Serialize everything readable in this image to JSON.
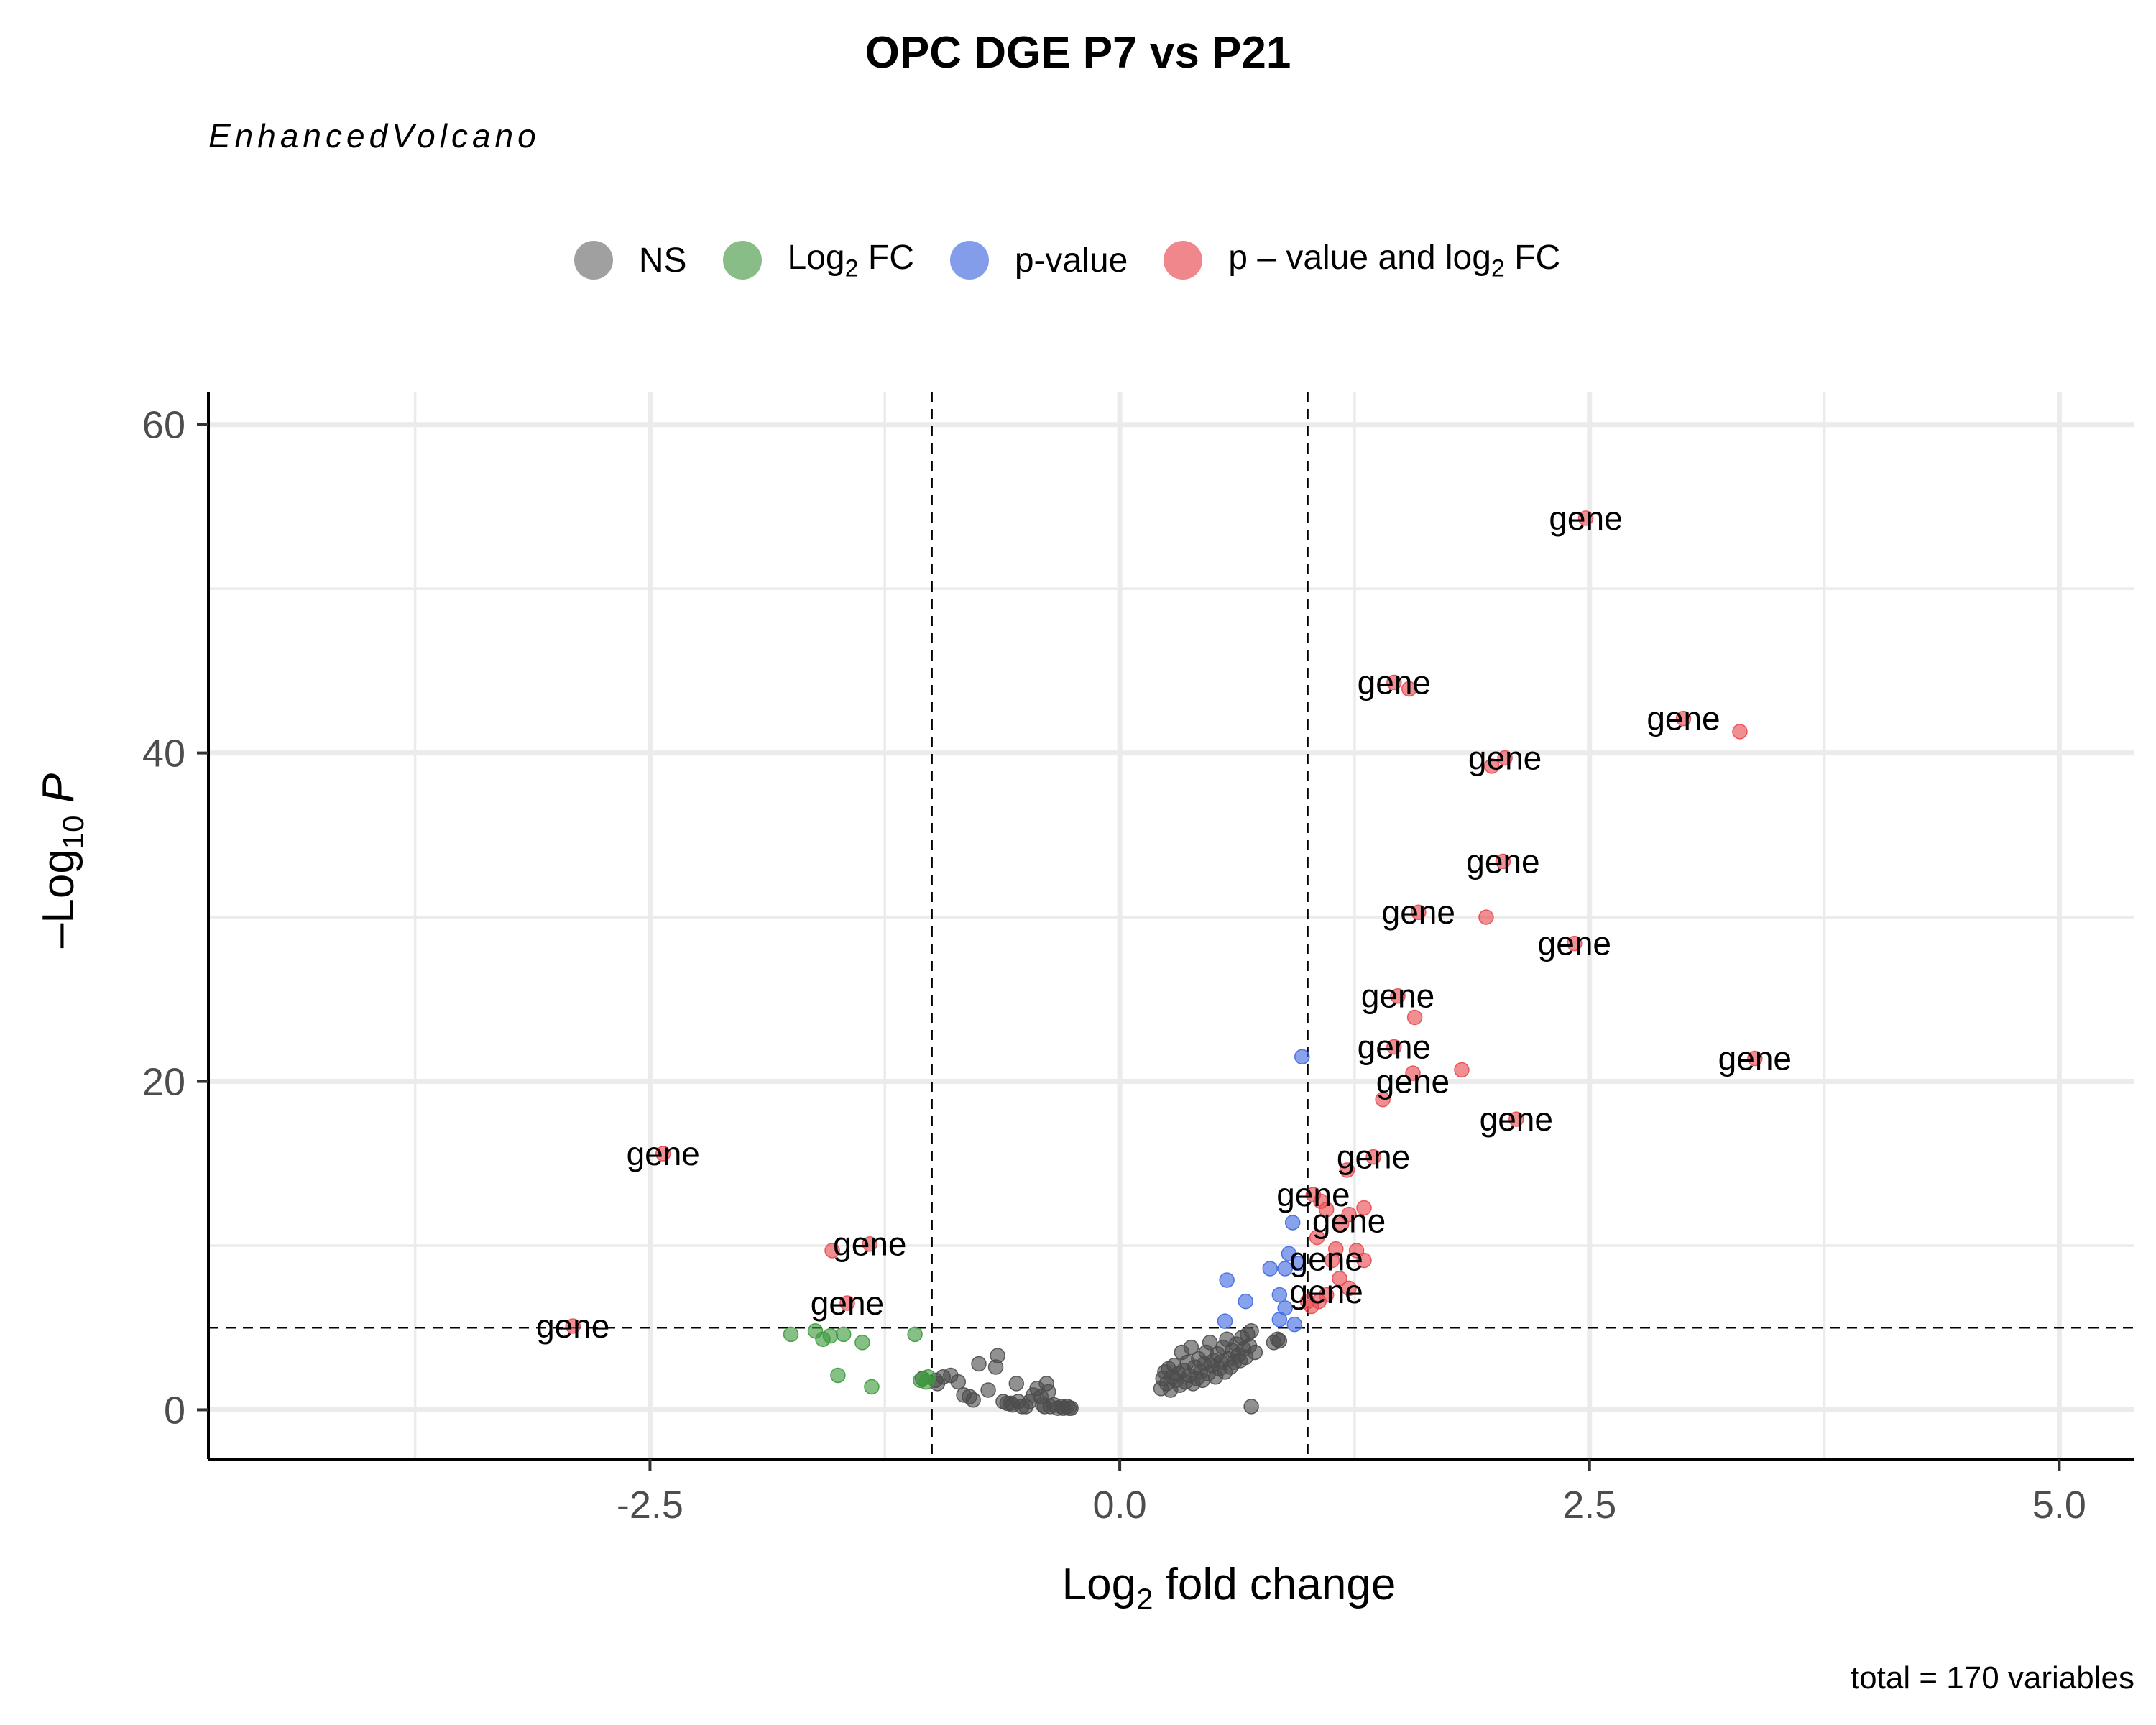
{
  "chart_data": {
    "type": "scatter",
    "title": "OPC DGE P7 vs P21",
    "subtitle": "EnhancedVolcano",
    "xlabel": "Log2 fold change",
    "xlabel_parts": {
      "pre": "Log",
      "sub": "2",
      "post": " fold change"
    },
    "ylabel_parts": {
      "pre": "–Log",
      "sub": "10",
      "post": " P"
    },
    "caption": "total = 170 variables",
    "xlim": [
      -4.85,
      5.4
    ],
    "ylim": [
      -3,
      62
    ],
    "x_ticks": [
      -2.5,
      0.0,
      2.5,
      5.0
    ],
    "x_tick_labels": [
      "-2.5",
      "0.0",
      "2.5",
      "5.0"
    ],
    "y_ticks": [
      0,
      20,
      40,
      60
    ],
    "y_tick_labels": [
      "0",
      "20",
      "40",
      "60"
    ],
    "grid": true,
    "legend_position": "top",
    "thresholds": {
      "fc_cutoffs": [
        -1,
        1
      ],
      "p_cutoff_neglog10": 5
    },
    "legend": [
      {
        "key": "NS",
        "text": "NS",
        "color": "#6e6e6e"
      },
      {
        "key": "FC",
        "text": "Log",
        "sub": "2",
        "post": " FC",
        "color": "#4a9a4a"
      },
      {
        "key": "P",
        "text": "p-value",
        "color": "#4169e1"
      },
      {
        "key": "FCP",
        "text": "p – value and log",
        "sub": "2",
        "post": " FC",
        "color": "#e8484f"
      }
    ],
    "series": [
      {
        "key": "NS",
        "color": "#4d4d4d",
        "points": [
          [
            -1.05,
            1.9
          ],
          [
            -0.98,
            1.8
          ],
          [
            -0.97,
            1.6
          ],
          [
            -0.94,
            2.0
          ],
          [
            -0.9,
            2.1
          ],
          [
            -0.86,
            1.7
          ],
          [
            -0.83,
            0.9
          ],
          [
            -0.8,
            0.8
          ],
          [
            -0.78,
            0.6
          ],
          [
            -0.75,
            2.8
          ],
          [
            -0.7,
            1.2
          ],
          [
            -0.66,
            2.6
          ],
          [
            -0.65,
            3.3
          ],
          [
            -0.62,
            0.5
          ],
          [
            -0.6,
            0.4
          ],
          [
            -0.58,
            0.4
          ],
          [
            -0.57,
            0.3
          ],
          [
            -0.55,
            1.6
          ],
          [
            -0.54,
            0.5
          ],
          [
            -0.52,
            0.2
          ],
          [
            -0.5,
            0.2
          ],
          [
            -0.48,
            0.5
          ],
          [
            -0.46,
            0.9
          ],
          [
            -0.44,
            1.3
          ],
          [
            -0.42,
            0.8
          ],
          [
            -0.41,
            0.3
          ],
          [
            -0.4,
            0.2
          ],
          [
            -0.39,
            1.6
          ],
          [
            -0.38,
            1.1
          ],
          [
            -0.37,
            0.2
          ],
          [
            -0.35,
            0.3
          ],
          [
            -0.33,
            0.1
          ],
          [
            -0.31,
            0.2
          ],
          [
            -0.3,
            0.1
          ],
          [
            -0.28,
            0.2
          ],
          [
            -0.27,
            0.1
          ],
          [
            -0.26,
            0.1
          ],
          [
            0.22,
            1.3
          ],
          [
            0.23,
            1.9
          ],
          [
            0.24,
            2.3
          ],
          [
            0.25,
            1.6
          ],
          [
            0.26,
            2.5
          ],
          [
            0.27,
            1.2
          ],
          [
            0.28,
            2.0
          ],
          [
            0.29,
            2.7
          ],
          [
            0.3,
            1.8
          ],
          [
            0.31,
            2.2
          ],
          [
            0.32,
            1.5
          ],
          [
            0.33,
            3.5
          ],
          [
            0.34,
            2.4
          ],
          [
            0.35,
            1.7
          ],
          [
            0.36,
            2.9
          ],
          [
            0.37,
            2.1
          ],
          [
            0.38,
            3.8
          ],
          [
            0.39,
            1.6
          ],
          [
            0.4,
            2.6
          ],
          [
            0.41,
            1.9
          ],
          [
            0.42,
            3.1
          ],
          [
            0.43,
            2.3
          ],
          [
            0.44,
            1.8
          ],
          [
            0.45,
            2.8
          ],
          [
            0.46,
            3.5
          ],
          [
            0.47,
            2.2
          ],
          [
            0.48,
            4.1
          ],
          [
            0.49,
            2.7
          ],
          [
            0.5,
            3.0
          ],
          [
            0.51,
            2.0
          ],
          [
            0.52,
            3.4
          ],
          [
            0.53,
            2.5
          ],
          [
            0.54,
            2.9
          ],
          [
            0.55,
            3.8
          ],
          [
            0.56,
            2.3
          ],
          [
            0.57,
            4.3
          ],
          [
            0.58,
            3.1
          ],
          [
            0.59,
            2.6
          ],
          [
            0.6,
            3.6
          ],
          [
            0.61,
            2.9
          ],
          [
            0.62,
            4.0
          ],
          [
            0.63,
            3.3
          ],
          [
            0.64,
            3.0
          ],
          [
            0.65,
            4.4
          ],
          [
            0.66,
            3.7
          ],
          [
            0.67,
            3.2
          ],
          [
            0.68,
            4.6
          ],
          [
            0.69,
            3.9
          ],
          [
            0.7,
            4.8
          ],
          [
            0.72,
            3.5
          ],
          [
            0.7,
            0.2
          ],
          [
            0.82,
            4.1
          ],
          [
            0.84,
            4.3
          ],
          [
            0.85,
            4.2
          ]
        ]
      },
      {
        "key": "FC",
        "color": "#3e9a3e",
        "points": [
          [
            -1.75,
            4.6
          ],
          [
            -1.62,
            4.8
          ],
          [
            -1.58,
            4.3
          ],
          [
            -1.54,
            4.5
          ],
          [
            -1.5,
            2.1
          ],
          [
            -1.47,
            4.6
          ],
          [
            -1.37,
            4.1
          ],
          [
            -1.32,
            1.4
          ],
          [
            -1.09,
            4.6
          ],
          [
            -1.06,
            1.8
          ],
          [
            -1.03,
            1.7
          ],
          [
            -1.02,
            2.0
          ]
        ]
      },
      {
        "key": "P",
        "color": "#4169e1",
        "points": [
          [
            0.97,
            21.5
          ],
          [
            0.92,
            11.4
          ],
          [
            0.88,
            8.6
          ],
          [
            0.8,
            8.6
          ],
          [
            0.85,
            7.0
          ],
          [
            0.57,
            7.9
          ],
          [
            0.67,
            6.6
          ],
          [
            0.56,
            5.4
          ],
          [
            0.85,
            5.5
          ],
          [
            0.88,
            6.2
          ],
          [
            0.93,
            5.2
          ],
          [
            0.9,
            9.5
          ],
          [
            0.95,
            8.9
          ]
        ]
      },
      {
        "key": "FCP",
        "color": "#e8484f",
        "points": [
          [
            2.48,
            54.3
          ],
          [
            1.46,
            44.3
          ],
          [
            1.54,
            43.9
          ],
          [
            3.0,
            42.1
          ],
          [
            3.3,
            41.3
          ],
          [
            2.05,
            39.7
          ],
          [
            1.98,
            39.2
          ],
          [
            2.04,
            33.4
          ],
          [
            1.59,
            30.3
          ],
          [
            1.95,
            30.0
          ],
          [
            2.42,
            28.4
          ],
          [
            1.48,
            25.2
          ],
          [
            1.57,
            23.9
          ],
          [
            1.46,
            22.1
          ],
          [
            1.56,
            20.5
          ],
          [
            1.82,
            20.7
          ],
          [
            1.4,
            18.9
          ],
          [
            2.11,
            17.7
          ],
          [
            3.38,
            21.4
          ],
          [
            -2.43,
            15.6
          ],
          [
            -1.33,
            10.1
          ],
          [
            -1.53,
            9.7
          ],
          [
            -1.45,
            6.5
          ],
          [
            -2.91,
            5.1
          ],
          [
            1.35,
            15.4
          ],
          [
            1.21,
            14.6
          ],
          [
            1.03,
            13.1
          ],
          [
            1.07,
            12.7
          ],
          [
            1.1,
            12.2
          ],
          [
            1.22,
            11.9
          ],
          [
            1.3,
            12.3
          ],
          [
            1.18,
            11.3
          ],
          [
            1.05,
            10.5
          ],
          [
            1.15,
            9.8
          ],
          [
            1.26,
            9.7
          ],
          [
            1.13,
            9.1
          ],
          [
            1.3,
            9.1
          ],
          [
            1.17,
            8.0
          ],
          [
            1.22,
            7.4
          ],
          [
            1.1,
            7.0
          ],
          [
            1.06,
            6.6
          ],
          [
            1.02,
            6.3
          ],
          [
            1.0,
            6.6
          ]
        ]
      }
    ],
    "labels": [
      {
        "x": 2.48,
        "y": 54.3,
        "text": "gene"
      },
      {
        "x": 1.46,
        "y": 44.3,
        "text": "gene"
      },
      {
        "x": 3.0,
        "y": 42.1,
        "text": "gene"
      },
      {
        "x": 2.05,
        "y": 39.7,
        "text": "gene"
      },
      {
        "x": 2.04,
        "y": 33.4,
        "text": "gene"
      },
      {
        "x": 1.59,
        "y": 30.3,
        "text": "gene"
      },
      {
        "x": 2.42,
        "y": 28.4,
        "text": "gene"
      },
      {
        "x": 1.48,
        "y": 25.2,
        "text": "gene"
      },
      {
        "x": 1.46,
        "y": 22.1,
        "text": "gene"
      },
      {
        "x": 3.38,
        "y": 21.4,
        "text": "gene"
      },
      {
        "x": 1.56,
        "y": 20.0,
        "text": "gene"
      },
      {
        "x": 2.11,
        "y": 17.7,
        "text": "gene"
      },
      {
        "x": -2.43,
        "y": 15.6,
        "text": "gene"
      },
      {
        "x": 1.35,
        "y": 15.4,
        "text": "gene"
      },
      {
        "x": 1.03,
        "y": 13.1,
        "text": "gene"
      },
      {
        "x": 1.22,
        "y": 11.5,
        "text": "gene"
      },
      {
        "x": -1.33,
        "y": 10.1,
        "text": "gene"
      },
      {
        "x": 1.1,
        "y": 9.2,
        "text": "gene"
      },
      {
        "x": -1.45,
        "y": 6.5,
        "text": "gene"
      },
      {
        "x": 1.1,
        "y": 7.2,
        "text": "gene"
      },
      {
        "x": -2.91,
        "y": 5.1,
        "text": "gene"
      }
    ]
  }
}
